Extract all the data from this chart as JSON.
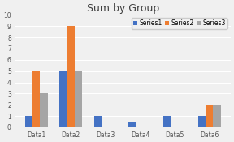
{
  "title": "Sum by Group",
  "categories": [
    "Data1",
    "Data2",
    "Data3",
    "Data4",
    "Data5",
    "Data6"
  ],
  "series": [
    {
      "name": "Series1",
      "values": [
        1,
        5,
        1,
        0.5,
        1,
        1
      ],
      "color": "#4472C4"
    },
    {
      "name": "Series2",
      "values": [
        5,
        9,
        0,
        0,
        0,
        2
      ],
      "color": "#ED7D31"
    },
    {
      "name": "Series3",
      "values": [
        3,
        5,
        0,
        0,
        0,
        2
      ],
      "color": "#A5A5A5"
    }
  ],
  "ylim": [
    0,
    10
  ],
  "yticks": [
    0,
    1,
    2,
    3,
    4,
    5,
    6,
    7,
    8,
    9,
    10
  ],
  "background_color": "#F0F0F0",
  "plot_bg_color": "#F0F0F0",
  "title_fontsize": 9,
  "legend_fontsize": 5.5,
  "tick_fontsize": 5.5,
  "bar_width": 0.22,
  "grid_color": "#FFFFFF",
  "title_color": "#404040"
}
